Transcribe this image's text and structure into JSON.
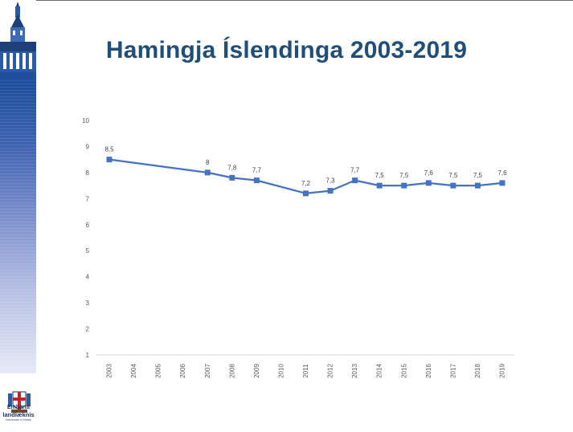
{
  "slide": {
    "title": "Hamingja Íslendinga 2003-2019",
    "logo_line1": "Embætti",
    "logo_line2": "landlæknis",
    "logo_line3": "Directorate of Health"
  },
  "colors": {
    "title": "#1f4e79",
    "series": "#4472c4",
    "band_top": "#1d4f9c"
  },
  "chart_data": {
    "type": "line",
    "categories": [
      "2003",
      "2004",
      "2005",
      "2006",
      "2007",
      "2008",
      "2009",
      "2010",
      "2011",
      "2012",
      "2013",
      "2014",
      "2015",
      "2016",
      "2017",
      "2018",
      "2019"
    ],
    "series": [
      {
        "values": [
          8.5,
          null,
          null,
          null,
          8,
          7.8,
          7.7,
          null,
          7.2,
          7.3,
          7.7,
          7.5,
          7.5,
          7.6,
          7.5,
          7.5,
          7.6
        ],
        "labels": [
          "8,5",
          "",
          "",
          "",
          "8",
          "7,8",
          "7,7",
          "",
          "7,2",
          "7,3",
          "7,7",
          "7,5",
          "7,5",
          "7,6",
          "7,5",
          "7,5",
          "7,6"
        ]
      }
    ],
    "yticks": [
      "1",
      "2",
      "3",
      "4",
      "5",
      "6",
      "7",
      "8",
      "9",
      "10"
    ],
    "ylim": [
      1,
      10
    ],
    "grid": false,
    "legend": "none",
    "marker": "square"
  }
}
